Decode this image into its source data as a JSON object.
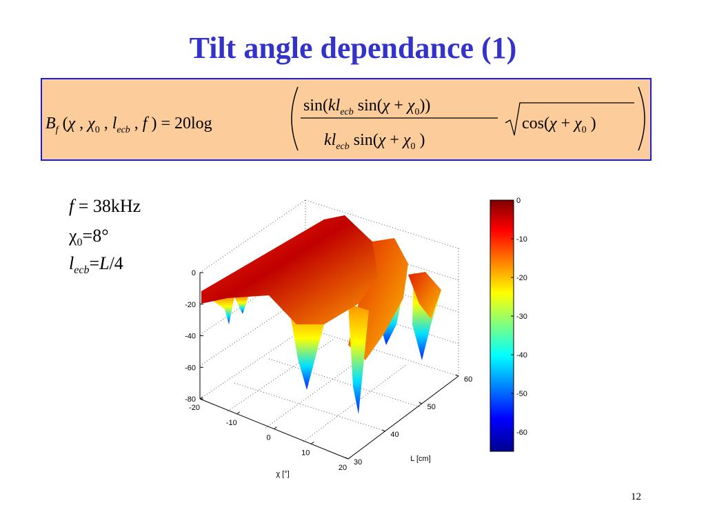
{
  "title": "Tilt angle dependance (1)",
  "formula": {
    "lhs": [
      "B",
      "f",
      " (",
      "χ",
      " , ",
      "χ",
      "0",
      " , ",
      "l",
      "ecb",
      " , ",
      "f",
      " ) = 20log"
    ],
    "numerator": [
      "sin(",
      "kl",
      "ecb",
      " sin(",
      "χ",
      " + ",
      "χ",
      "0",
      "))"
    ],
    "denominator": [
      "kl",
      "ecb",
      " sin(",
      "χ",
      " + ",
      "χ",
      "0",
      " )"
    ],
    "root": [
      "cos(",
      "χ",
      " + ",
      "χ",
      "0",
      " )"
    ]
  },
  "parameters": [
    [
      "f",
      " = 38kHz"
    ],
    [
      "χ",
      "0",
      "=8°"
    ],
    [
      "l",
      "ecb",
      "=",
      "L",
      "/4"
    ]
  ],
  "plot": {
    "zlim": [
      -80,
      0
    ],
    "zticks": [
      0,
      -20,
      -40,
      -60,
      -80
    ],
    "chilim": [
      -20,
      20
    ],
    "chiticks": [
      -20,
      -10,
      0,
      10,
      20
    ],
    "chi_label": "χ [°]",
    "llim": [
      30,
      60
    ],
    "lticks": [
      30,
      40,
      50,
      60
    ],
    "l_label": "L [cm]",
    "colorbar": {
      "clim": [
        -65,
        0
      ],
      "ticks": [
        0,
        -10,
        -20,
        -30,
        -40,
        -50,
        -60
      ]
    }
  },
  "page_number": "12"
}
